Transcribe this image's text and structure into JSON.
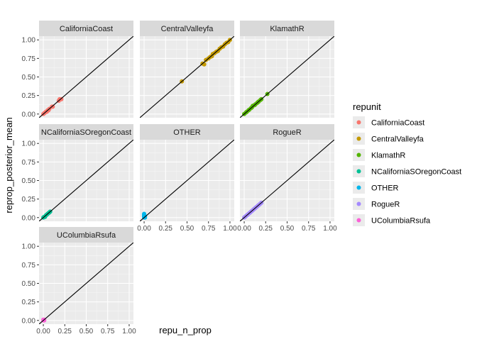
{
  "chart_data": {
    "type": "scatter",
    "facet_by": "repunit",
    "xlabel": "repu_n_prop",
    "ylabel": "reprop_posterior_mean",
    "xlim": [
      0,
      1
    ],
    "ylim": [
      0,
      1
    ],
    "x_ticks": [
      "0.00",
      "0.25",
      "0.50",
      "0.75",
      "1.00"
    ],
    "y_ticks": [
      "0.00",
      "0.25",
      "0.50",
      "0.75",
      "1.00"
    ],
    "reference_line": "y = x",
    "grid": true,
    "legend": {
      "title": "repunit",
      "position": "right",
      "entries": [
        {
          "label": "CaliforniaCoast",
          "color": "#F8766D"
        },
        {
          "label": "CentralValleyfa",
          "color": "#C49A00"
        },
        {
          "label": "KlamathR",
          "color": "#53B400"
        },
        {
          "label": "NCaliforniaSOregonCoast",
          "color": "#00C094"
        },
        {
          "label": "OTHER",
          "color": "#00B6EB"
        },
        {
          "label": "RogueR",
          "color": "#A58AFF"
        },
        {
          "label": "UColumbiaRsufa",
          "color": "#FB61D7"
        }
      ]
    },
    "panels": [
      {
        "title": "CaliforniaCoast",
        "color": "#F8766D",
        "points": [
          [
            0.0,
            0.0
          ],
          [
            0.01,
            0.01
          ],
          [
            0.02,
            0.02
          ],
          [
            0.03,
            0.03
          ],
          [
            0.04,
            0.03
          ],
          [
            0.05,
            0.05
          ],
          [
            0.06,
            0.05
          ],
          [
            0.07,
            0.07
          ],
          [
            0.1,
            0.1
          ],
          [
            0.11,
            0.1
          ],
          [
            0.18,
            0.18
          ],
          [
            0.19,
            0.2
          ],
          [
            0.21,
            0.2
          ]
        ]
      },
      {
        "title": "CentralValleyfa",
        "color": "#C49A00",
        "points": [
          [
            0.44,
            0.44
          ],
          [
            0.68,
            0.68
          ],
          [
            0.7,
            0.67
          ],
          [
            0.72,
            0.73
          ],
          [
            0.75,
            0.75
          ],
          [
            0.77,
            0.77
          ],
          [
            0.79,
            0.78
          ],
          [
            0.8,
            0.81
          ],
          [
            0.82,
            0.82
          ],
          [
            0.84,
            0.84
          ],
          [
            0.86,
            0.85
          ],
          [
            0.88,
            0.88
          ],
          [
            0.9,
            0.9
          ],
          [
            0.92,
            0.91
          ],
          [
            0.94,
            0.94
          ],
          [
            0.96,
            0.96
          ],
          [
            0.98,
            0.97
          ],
          [
            1.0,
            1.0
          ]
        ]
      },
      {
        "title": "KlamathR",
        "color": "#53B400",
        "points": [
          [
            0.0,
            0.0
          ],
          [
            0.02,
            0.02
          ],
          [
            0.03,
            0.03
          ],
          [
            0.05,
            0.05
          ],
          [
            0.06,
            0.06
          ],
          [
            0.08,
            0.08
          ],
          [
            0.09,
            0.09
          ],
          [
            0.1,
            0.11
          ],
          [
            0.12,
            0.12
          ],
          [
            0.13,
            0.13
          ],
          [
            0.15,
            0.15
          ],
          [
            0.16,
            0.16
          ],
          [
            0.17,
            0.17
          ],
          [
            0.19,
            0.19
          ],
          [
            0.2,
            0.2
          ],
          [
            0.27,
            0.27
          ]
        ]
      },
      {
        "title": "NCaliforniaSOregonCoast",
        "color": "#00C094",
        "points": [
          [
            0.0,
            0.0
          ],
          [
            0.01,
            0.01
          ],
          [
            0.02,
            0.01
          ],
          [
            0.03,
            0.03
          ],
          [
            0.04,
            0.04
          ],
          [
            0.05,
            0.05
          ],
          [
            0.06,
            0.06
          ],
          [
            0.07,
            0.07
          ],
          [
            0.08,
            0.08
          ]
        ]
      },
      {
        "title": "OTHER",
        "color": "#00B6EB",
        "points": [
          [
            0.0,
            0.0
          ],
          [
            0.0,
            0.01
          ],
          [
            0.0,
            0.02
          ],
          [
            0.0,
            0.03
          ],
          [
            0.0,
            0.04
          ],
          [
            0.0,
            0.05
          ],
          [
            0.01,
            0.0
          ],
          [
            0.01,
            0.02
          ]
        ]
      },
      {
        "title": "RogueR",
        "color": "#A58AFF",
        "points": [
          [
            0.0,
            0.0
          ],
          [
            0.01,
            0.01
          ],
          [
            0.02,
            0.02
          ],
          [
            0.03,
            0.03
          ],
          [
            0.04,
            0.04
          ],
          [
            0.05,
            0.05
          ],
          [
            0.06,
            0.06
          ],
          [
            0.07,
            0.07
          ],
          [
            0.08,
            0.08
          ],
          [
            0.09,
            0.09
          ],
          [
            0.1,
            0.1
          ],
          [
            0.11,
            0.11
          ],
          [
            0.12,
            0.12
          ],
          [
            0.13,
            0.13
          ],
          [
            0.14,
            0.14
          ],
          [
            0.15,
            0.15
          ],
          [
            0.16,
            0.16
          ],
          [
            0.17,
            0.17
          ],
          [
            0.18,
            0.18
          ],
          [
            0.19,
            0.19
          ],
          [
            0.2,
            0.2
          ]
        ]
      },
      {
        "title": "UColumbiaRsufa",
        "color": "#FB61D7",
        "points": [
          [
            0.0,
            0.0
          ],
          [
            0.0,
            0.01
          ],
          [
            0.01,
            0.0
          ],
          [
            0.01,
            0.01
          ]
        ]
      }
    ]
  }
}
